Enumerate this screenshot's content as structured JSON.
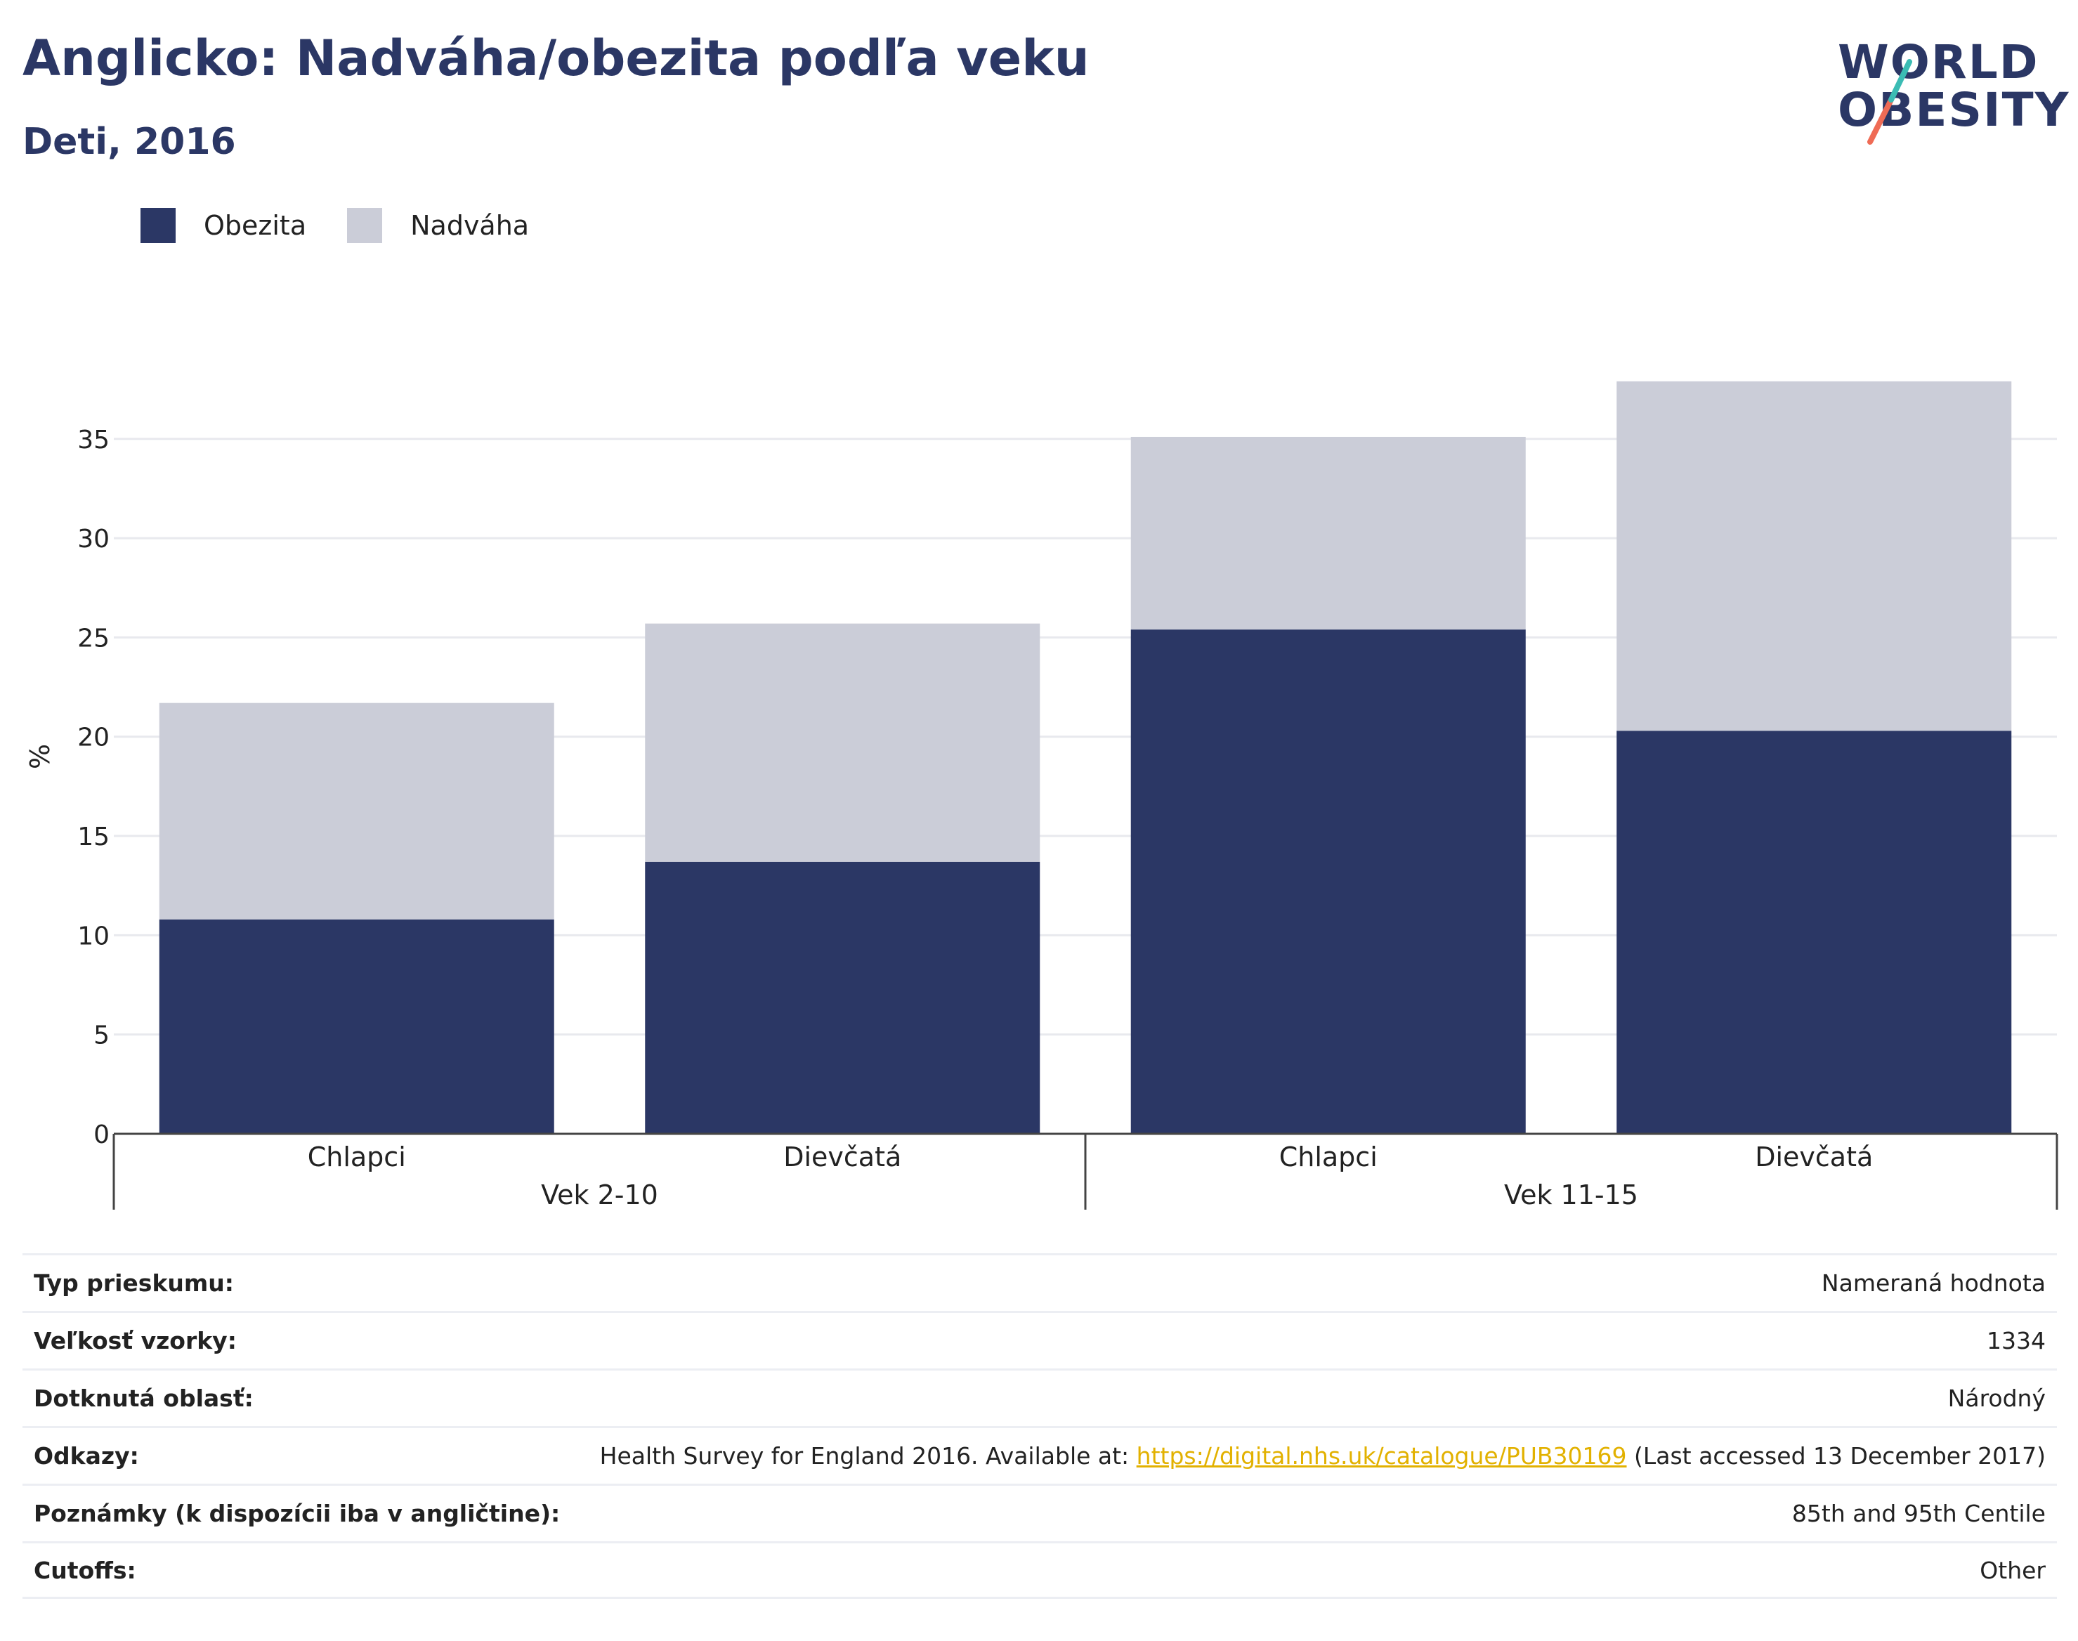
{
  "header": {
    "title": "Anglicko: Nadváha/obezita podľa veku",
    "subtitle": "Deti, 2016"
  },
  "logo": {
    "line1": "WORLD",
    "line2": "OBESITY"
  },
  "legend": [
    {
      "label": "Obezita",
      "color": "#2b3765"
    },
    {
      "label": "Nadváha",
      "color": "#cbcdd8"
    }
  ],
  "chart_data": {
    "type": "bar",
    "stacked": true,
    "ylabel": "%",
    "xlabel": "",
    "ylim": [
      0,
      38
    ],
    "yticks": [
      0,
      5,
      10,
      15,
      20,
      25,
      30,
      35
    ],
    "grid": true,
    "legend_position": "top-left",
    "categories": [
      "Chlapci",
      "Dievčatá",
      "Chlapci",
      "Dievčatá"
    ],
    "groups": [
      {
        "label": "Vek 2-10",
        "categories": [
          0,
          1
        ]
      },
      {
        "label": "Vek 11-15",
        "categories": [
          2,
          3
        ]
      }
    ],
    "series": [
      {
        "name": "Obezita",
        "color": "#2b3765",
        "values": [
          10.8,
          13.7,
          25.4,
          20.3
        ]
      },
      {
        "name": "Nadváha",
        "color": "#cbcdd8",
        "values": [
          10.9,
          12.0,
          9.7,
          17.6
        ]
      }
    ]
  },
  "table": {
    "rows": [
      {
        "key": "Typ prieskumu:",
        "value": "Nameraná hodnota"
      },
      {
        "key": "Veľkosť vzorky:",
        "value": "1334"
      },
      {
        "key": "Dotknutá oblasť:",
        "value": "Národný"
      },
      {
        "key": "Odkazy:",
        "value_pre": "Health Survey for England 2016. Available at: ",
        "link": "https://digital.nhs.uk/catalogue/PUB30169",
        "value_post": " (Last accessed 13 December 2017)"
      },
      {
        "key": "Poznámky (k dispozícii iba v angličtine):",
        "value": "85th and 95th Centile"
      },
      {
        "key": "Cutoffs:",
        "value": "Other"
      }
    ]
  }
}
